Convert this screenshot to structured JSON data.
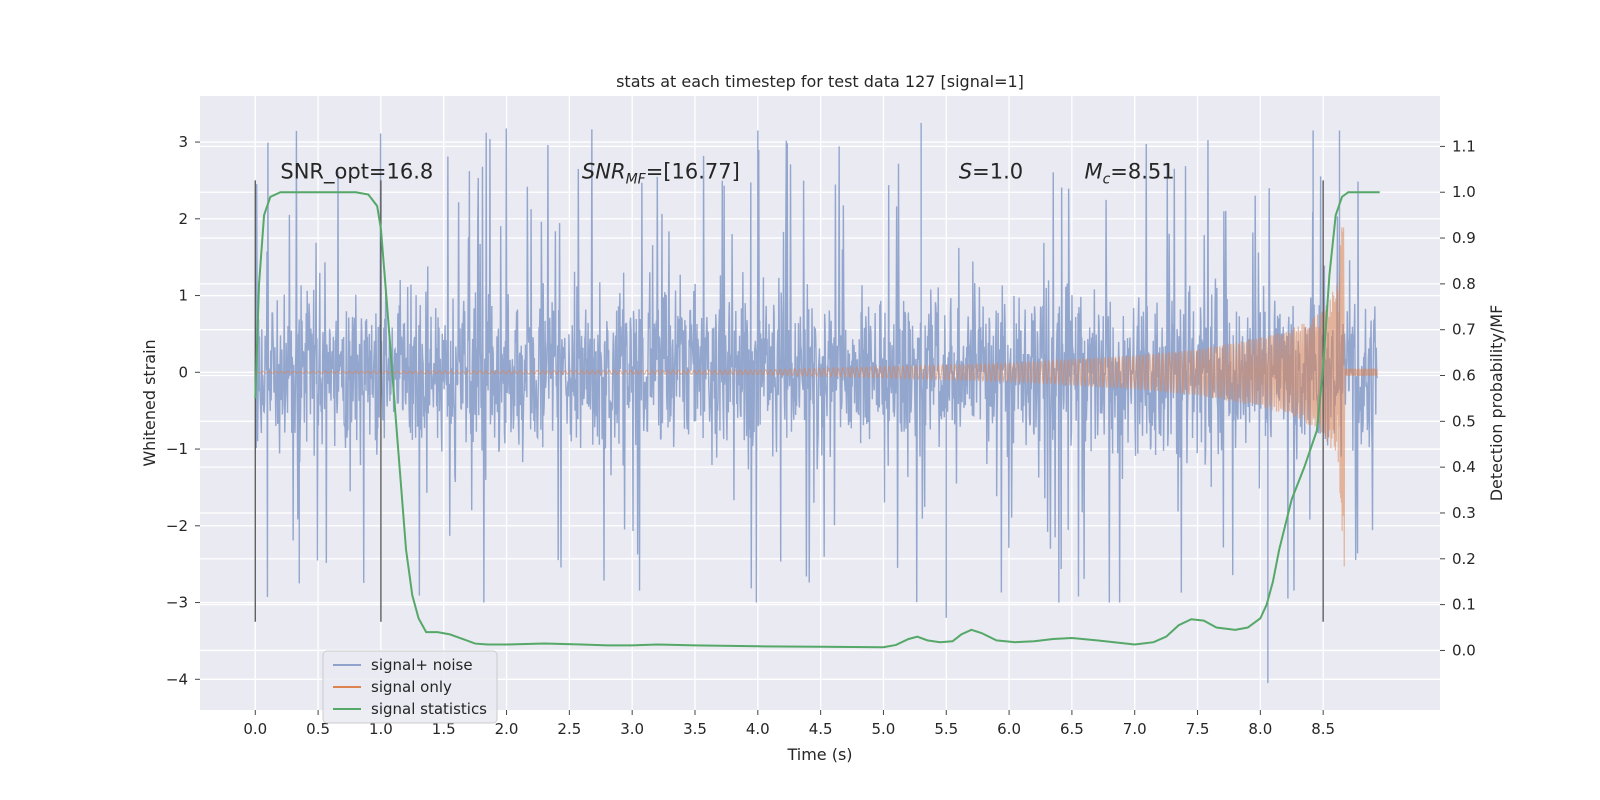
{
  "chart_data": {
    "type": "line",
    "title": "stats at each timestep for test data 127 [signal=1]",
    "xlabel": "Time (s)",
    "ylabel": "Whitened strain",
    "y2label": "Detection probability/MF",
    "xlim": [
      -0.44,
      9.43
    ],
    "ylim": [
      -4.4,
      3.6
    ],
    "y2lim": [
      -0.13,
      1.21
    ],
    "x_ticks": [
      0.0,
      0.5,
      1.0,
      1.5,
      2.0,
      2.5,
      3.0,
      3.5,
      4.0,
      4.5,
      5.0,
      5.5,
      6.0,
      6.5,
      7.0,
      7.5,
      8.0,
      8.5
    ],
    "x_tick_labels": [
      "0.0",
      "0.5",
      "1.0",
      "1.5",
      "2.0",
      "2.5",
      "3.0",
      "3.5",
      "4.0",
      "4.5",
      "5.0",
      "5.5",
      "6.0",
      "6.5",
      "7.0",
      "7.5",
      "8.0",
      "8.5"
    ],
    "y_ticks": [
      -4,
      -3,
      -2,
      -1,
      0,
      1,
      2,
      3
    ],
    "y_tick_labels": [
      "−4",
      "−3",
      "−2",
      "−1",
      "0",
      "1",
      "2",
      "3"
    ],
    "y2_ticks": [
      0.0,
      0.1,
      0.2,
      0.3,
      0.4,
      0.5,
      0.6,
      0.7,
      0.8,
      0.9,
      1.0,
      1.1
    ],
    "y2_tick_labels": [
      "0.0",
      "0.1",
      "0.2",
      "0.3",
      "0.4",
      "0.5",
      "0.6",
      "0.7",
      "0.8",
      "0.9",
      "1.0",
      "1.1"
    ],
    "grid": true,
    "legend_position": "lower-left",
    "annotations": [
      {
        "text": "SNR_opt=16.8",
        "x": 0.2
      },
      {
        "text": "SNR",
        "sub": "MF",
        "tail": "=[16.77]",
        "italic_part": "SNR_MF",
        "x": 2.6
      },
      {
        "text": "S",
        "tail": "=1.0",
        "x": 5.6
      },
      {
        "text": "M",
        "sub": "c",
        "tail": "=8.51",
        "x": 6.6
      }
    ],
    "annotation_y": 2.5,
    "vertical_markers": [
      0.0,
      1.0,
      8.5
    ],
    "vertical_marker_range": [
      -3.25,
      2.5
    ],
    "series": [
      {
        "name": "signal+ noise",
        "axis": "left",
        "color": "#8ea2cb",
        "x_range": [
          0.0,
          8.93
        ],
        "envelope_bulk": 1.3,
        "envelope_peak": 3.2,
        "notable_peaks": [
          [
            4.0,
            3.15
          ],
          [
            5.3,
            3.25
          ],
          [
            8.42,
            3.15
          ],
          [
            8.63,
            3.15
          ],
          [
            8.06,
            -4.05
          ],
          [
            0.35,
            -2.75
          ],
          [
            5.5,
            -3.2
          ]
        ]
      },
      {
        "name": "signal only",
        "axis": "left",
        "color": "#dd8452",
        "x_range": [
          0.0,
          8.93
        ],
        "merger_time": 8.67,
        "amplitude": [
          [
            0.0,
            0.01
          ],
          [
            4.0,
            0.03
          ],
          [
            6.0,
            0.12
          ],
          [
            7.0,
            0.22
          ],
          [
            7.5,
            0.3
          ],
          [
            8.0,
            0.45
          ],
          [
            8.3,
            0.6
          ],
          [
            8.5,
            0.8
          ],
          [
            8.62,
            1.2
          ],
          [
            8.67,
            2.6
          ]
        ]
      },
      {
        "name": "signal statistics",
        "axis": "right",
        "color": "#55a868",
        "x": [
          0.0,
          0.03,
          0.07,
          0.12,
          0.2,
          0.3,
          0.5,
          0.7,
          0.8,
          0.9,
          0.97,
          1.0,
          1.05,
          1.12,
          1.2,
          1.25,
          1.3,
          1.36,
          1.45,
          1.55,
          1.65,
          1.75,
          1.85,
          2.0,
          2.3,
          2.6,
          2.8,
          3.0,
          3.2,
          3.5,
          4.0,
          4.5,
          5.0,
          5.1,
          5.2,
          5.27,
          5.35,
          5.45,
          5.55,
          5.62,
          5.7,
          5.78,
          5.9,
          6.05,
          6.2,
          6.35,
          6.5,
          6.7,
          7.0,
          7.15,
          7.25,
          7.35,
          7.45,
          7.55,
          7.65,
          7.8,
          7.9,
          8.0,
          8.05,
          8.1,
          8.15,
          8.25,
          8.35,
          8.45,
          8.5,
          8.55,
          8.6,
          8.65,
          8.7,
          8.8,
          8.95
        ],
        "values": [
          0.55,
          0.8,
          0.95,
          0.99,
          1.0,
          1.0,
          1.0,
          1.0,
          1.0,
          0.995,
          0.97,
          0.92,
          0.75,
          0.5,
          0.22,
          0.12,
          0.07,
          0.04,
          0.04,
          0.035,
          0.025,
          0.015,
          0.013,
          0.013,
          0.015,
          0.013,
          0.011,
          0.011,
          0.013,
          0.011,
          0.009,
          0.008,
          0.007,
          0.012,
          0.025,
          0.03,
          0.022,
          0.018,
          0.02,
          0.035,
          0.045,
          0.038,
          0.022,
          0.018,
          0.02,
          0.025,
          0.027,
          0.022,
          0.013,
          0.018,
          0.03,
          0.055,
          0.068,
          0.065,
          0.05,
          0.045,
          0.05,
          0.07,
          0.1,
          0.15,
          0.22,
          0.33,
          0.4,
          0.48,
          0.62,
          0.82,
          0.95,
          0.99,
          1.0,
          1.0,
          1.0
        ]
      }
    ]
  }
}
